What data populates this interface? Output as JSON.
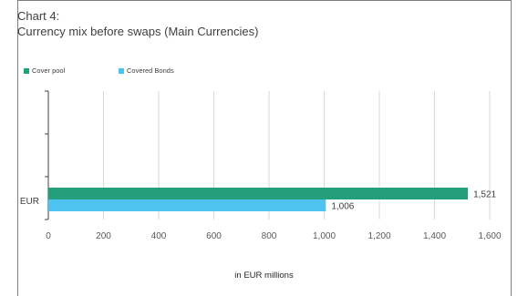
{
  "header": {
    "chart_number": "Chart 4:",
    "title": "Currency mix before swaps (Main Currencies)"
  },
  "colors": {
    "cover_pool": "#23a07b",
    "covered_bonds": "#4ec3f2",
    "gridline": "#d9d9d9",
    "axis": "#404040"
  },
  "chart_data": {
    "type": "bar",
    "orientation": "horizontal",
    "title": "Currency mix before swaps (Main Currencies)",
    "categories": [
      "EUR"
    ],
    "series": [
      {
        "name": "Cover pool",
        "values": [
          1521
        ],
        "labels": [
          "1,521"
        ]
      },
      {
        "name": "Covered Bonds",
        "values": [
          1006
        ],
        "labels": [
          "1,006"
        ]
      }
    ],
    "xlabel": "in EUR millions",
    "ylabel": "",
    "xlim": [
      0,
      1600
    ],
    "xticks": [
      "0",
      "200",
      "400",
      "600",
      "800",
      "1,000",
      "1,200",
      "1,400",
      "1,600"
    ],
    "grid": true,
    "legend_position": "top-left"
  }
}
